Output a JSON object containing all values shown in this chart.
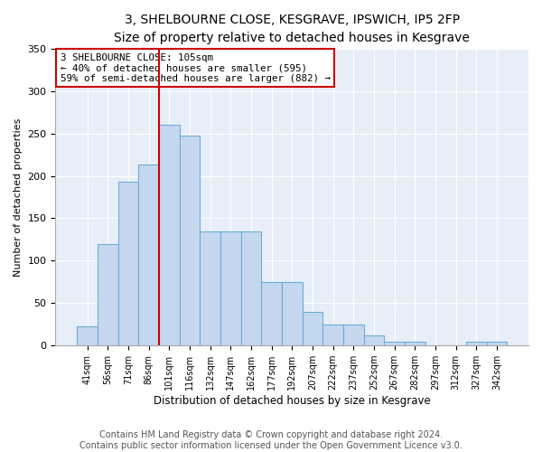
{
  "title": "3, SHELBOURNE CLOSE, KESGRAVE, IPSWICH, IP5 2FP",
  "subtitle": "Size of property relative to detached houses in Kesgrave",
  "xlabel": "Distribution of detached houses by size in Kesgrave",
  "ylabel": "Number of detached properties",
  "categories": [
    "41sqm",
    "56sqm",
    "71sqm",
    "86sqm",
    "101sqm",
    "116sqm",
    "132sqm",
    "147sqm",
    "162sqm",
    "177sqm",
    "192sqm",
    "207sqm",
    "222sqm",
    "237sqm",
    "252sqm",
    "267sqm",
    "282sqm",
    "297sqm",
    "312sqm",
    "327sqm",
    "342sqm"
  ],
  "values": [
    23,
    120,
    193,
    213,
    260,
    247,
    135,
    135,
    135,
    75,
    75,
    40,
    25,
    25,
    12,
    5,
    5,
    0,
    0,
    5,
    5
  ],
  "bar_color": "#c5d8f0",
  "bar_edge_color": "#6baed6",
  "vline_x_index": 4,
  "vline_color": "#cc0000",
  "annotation_text": "3 SHELBOURNE CLOSE: 105sqm\n← 40% of detached houses are smaller (595)\n59% of semi-detached houses are larger (882) →",
  "annotation_box_color": "#ffffff",
  "annotation_box_edge": "#cc0000",
  "footer": "Contains HM Land Registry data © Crown copyright and database right 2024.\nContains public sector information licensed under the Open Government Licence v3.0.",
  "ylim": [
    0,
    350
  ],
  "yticks": [
    0,
    50,
    100,
    150,
    200,
    250,
    300,
    350
  ],
  "background_color": "#e8eef8",
  "title_fontsize": 10,
  "xlabel_fontsize": 8.5,
  "ylabel_fontsize": 8,
  "footer_fontsize": 7,
  "grid_color": "#ffffff",
  "figsize": [
    6.0,
    5.0
  ],
  "dpi": 100
}
